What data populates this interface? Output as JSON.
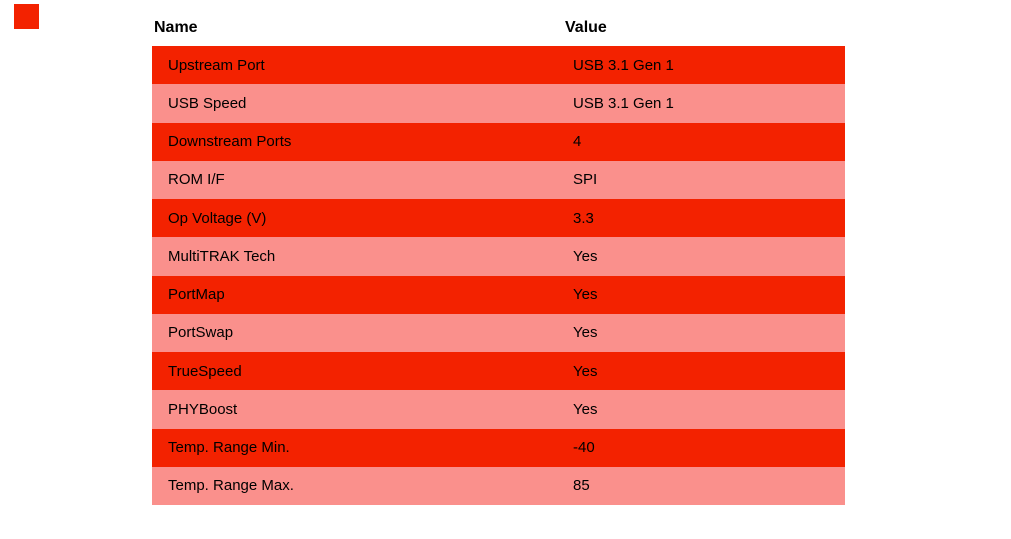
{
  "colors": {
    "row-odd": "#f32200",
    "row-even": "#fa908c",
    "text": "#000000",
    "background": "#ffffff"
  },
  "top_left_square": {
    "color": "#f32200"
  },
  "table": {
    "headers": {
      "name": "Name",
      "value": "Value"
    },
    "rows": [
      {
        "name": "Upstream Port",
        "value": "USB 3.1 Gen 1"
      },
      {
        "name": "USB Speed",
        "value": "USB 3.1 Gen 1"
      },
      {
        "name": "Downstream Ports",
        "value": "4"
      },
      {
        "name": "ROM I/F",
        "value": "SPI"
      },
      {
        "name": "Op Voltage (V)",
        "value": "3.3"
      },
      {
        "name": "MultiTRAK Tech",
        "value": "Yes"
      },
      {
        "name": "PortMap",
        "value": "Yes"
      },
      {
        "name": "PortSwap",
        "value": "Yes"
      },
      {
        "name": "TrueSpeed",
        "value": "Yes"
      },
      {
        "name": "PHYBoost",
        "value": "Yes"
      },
      {
        "name": "Temp. Range Min.",
        "value": "-40"
      },
      {
        "name": "Temp. Range Max.",
        "value": "85"
      }
    ]
  }
}
